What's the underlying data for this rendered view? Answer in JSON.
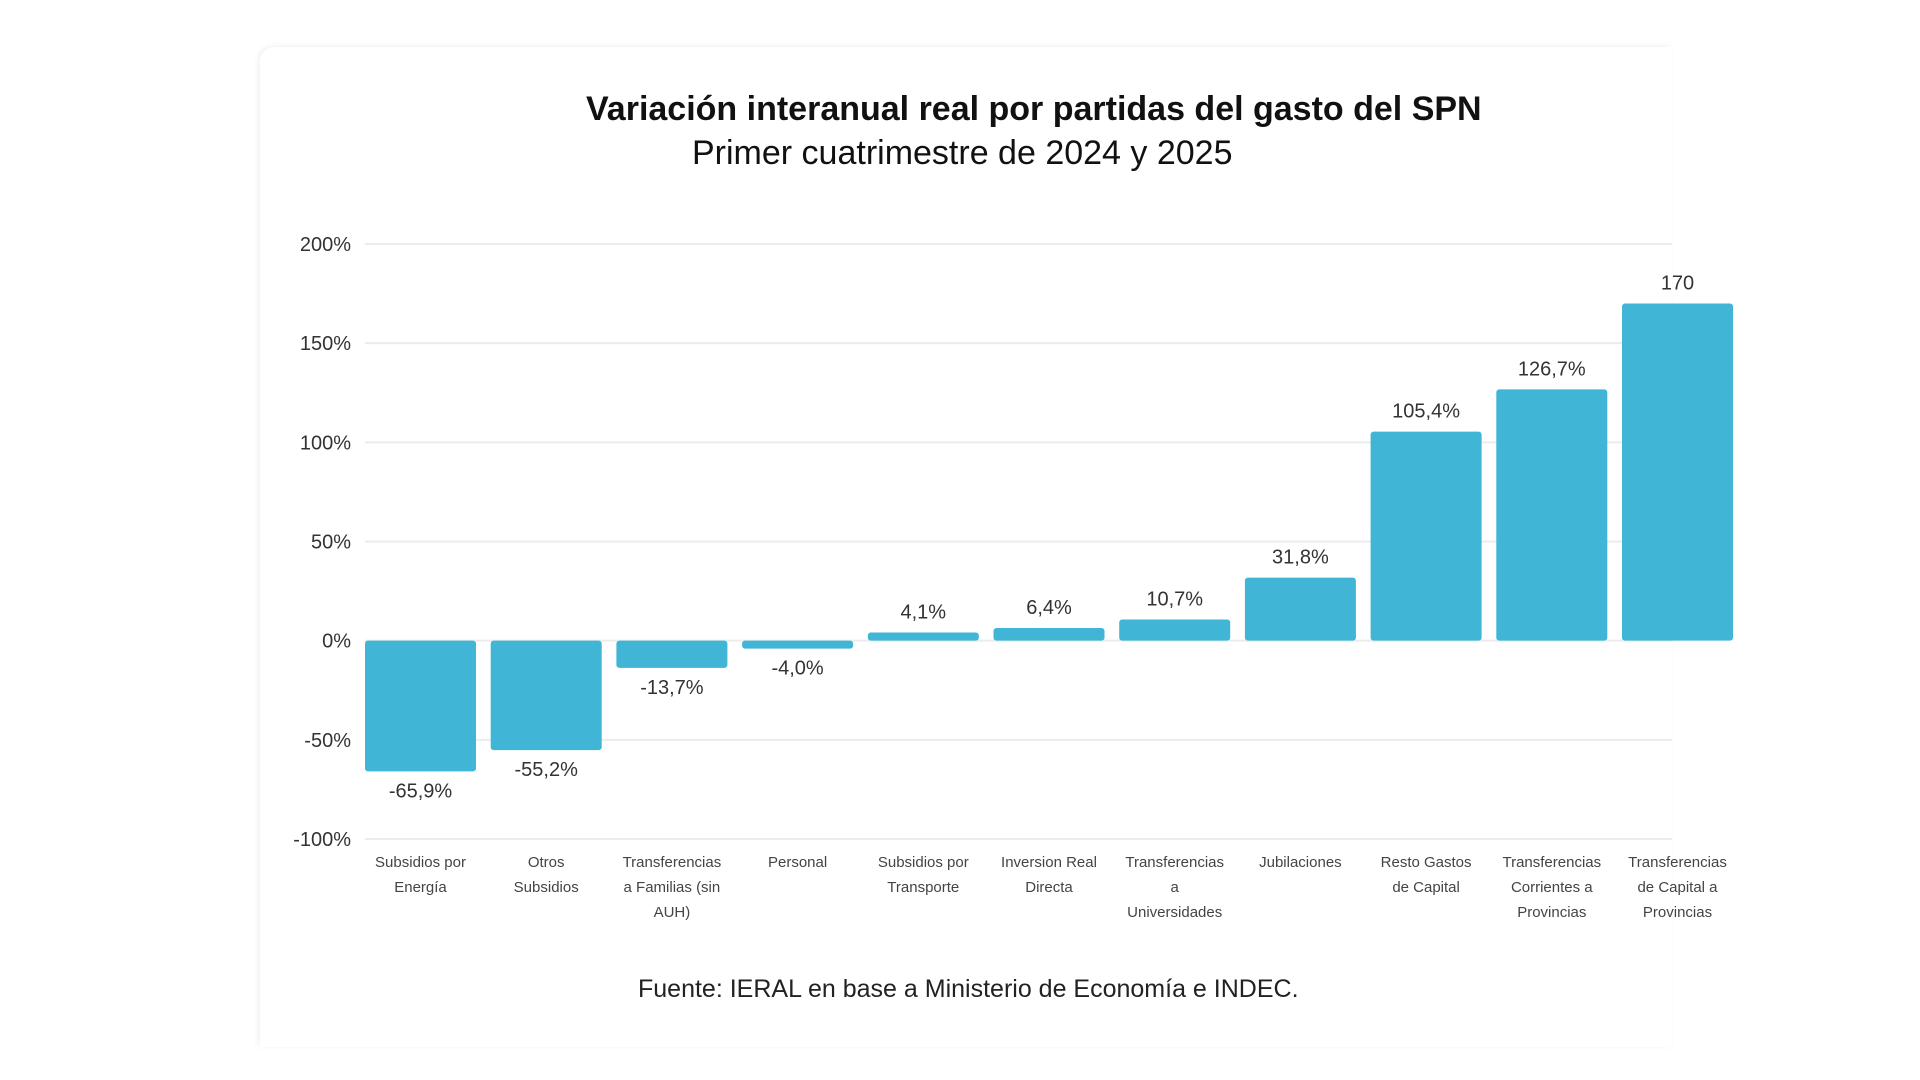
{
  "chart_data": {
    "type": "bar",
    "title": "Variación interanual real por partidas del gasto del SPN",
    "subtitle": "Primer cuatrimestre de 2024 y 2025",
    "source": "Fuente: IERAL en base a Ministerio de Economía e INDEC.",
    "ylim": [
      -100,
      200
    ],
    "yticks": [
      "200%",
      "150%",
      "100%",
      "50%",
      "0%",
      "-50%",
      "-100%"
    ],
    "ytick_values": [
      200,
      150,
      100,
      50,
      0,
      -50,
      -100
    ],
    "grid": true,
    "bar_color": "#40b5d6",
    "categories": [
      [
        "Subsidios por",
        "Energía"
      ],
      [
        "Otros",
        "Subsidios"
      ],
      [
        "Transferencias",
        "a Familias (sin",
        "AUH)"
      ],
      [
        "Personal"
      ],
      [
        "Subsidios por",
        "Transporte"
      ],
      [
        "Inversion Real",
        "Directa"
      ],
      [
        "Transferencias",
        "a",
        "Universidades"
      ],
      [
        "Jubilaciones"
      ],
      [
        "Resto Gastos",
        "de Capital"
      ],
      [
        "Transferencias",
        "Corrientes a",
        "Provincias"
      ],
      [
        "Transferencias",
        "de Capital a",
        "Provincias"
      ]
    ],
    "values": [
      -65.9,
      -55.2,
      -13.7,
      -4.0,
      4.1,
      6.4,
      10.7,
      31.8,
      105.4,
      126.7,
      170
    ],
    "data_labels": [
      "-65,9%",
      "-55,2%",
      "-13,7%",
      "-4,0%",
      "4,1%",
      "6,4%",
      "10,7%",
      "31,8%",
      "105,4%",
      "126,7%",
      "170"
    ]
  }
}
